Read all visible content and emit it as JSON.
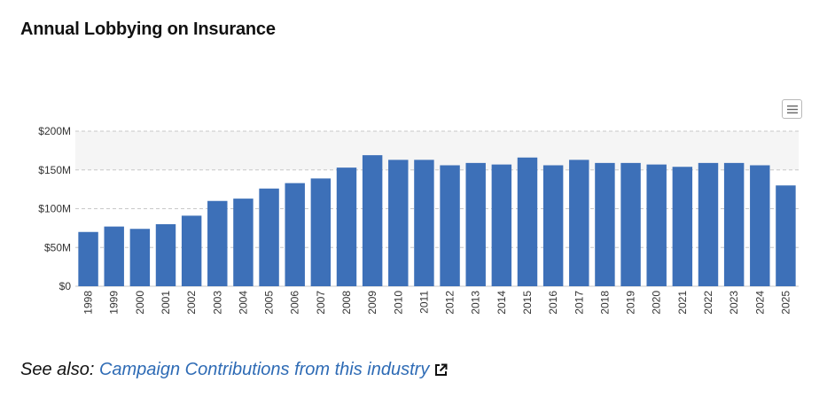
{
  "page": {
    "title": "Annual Lobbying on Insurance"
  },
  "footer": {
    "prefix": "See also:",
    "link_text": "Campaign Contributions from this industry",
    "link_icon": "external-link-icon"
  },
  "menu": {
    "icon": "hamburger-menu-icon"
  },
  "chart_data": {
    "type": "bar",
    "title": "",
    "xlabel": "",
    "ylabel": "",
    "categories": [
      "1998",
      "1999",
      "2000",
      "2001",
      "2002",
      "2003",
      "2004",
      "2005",
      "2006",
      "2007",
      "2008",
      "2009",
      "2010",
      "2011",
      "2012",
      "2013",
      "2014",
      "2015",
      "2016",
      "2017",
      "2018",
      "2019",
      "2020",
      "2021",
      "2022",
      "2023",
      "2024",
      "2025"
    ],
    "series": [
      {
        "values": [
          70,
          77,
          74,
          80,
          91,
          110,
          113,
          126,
          133,
          139,
          153,
          169,
          163,
          163,
          156,
          159,
          157,
          166,
          156,
          163,
          159,
          159,
          157,
          154,
          159,
          159,
          156,
          130
        ]
      }
    ],
    "ylim": [
      0,
      200
    ],
    "yticks": [
      0,
      50,
      100,
      150,
      200
    ],
    "ytick_labels": [
      "$0",
      "$50M",
      "$100M",
      "$150M",
      "$200M"
    ],
    "grid": true,
    "bar_color": "#3d70b8",
    "band_color": "#f5f5f5",
    "grid_color": "#c8c8c8"
  }
}
